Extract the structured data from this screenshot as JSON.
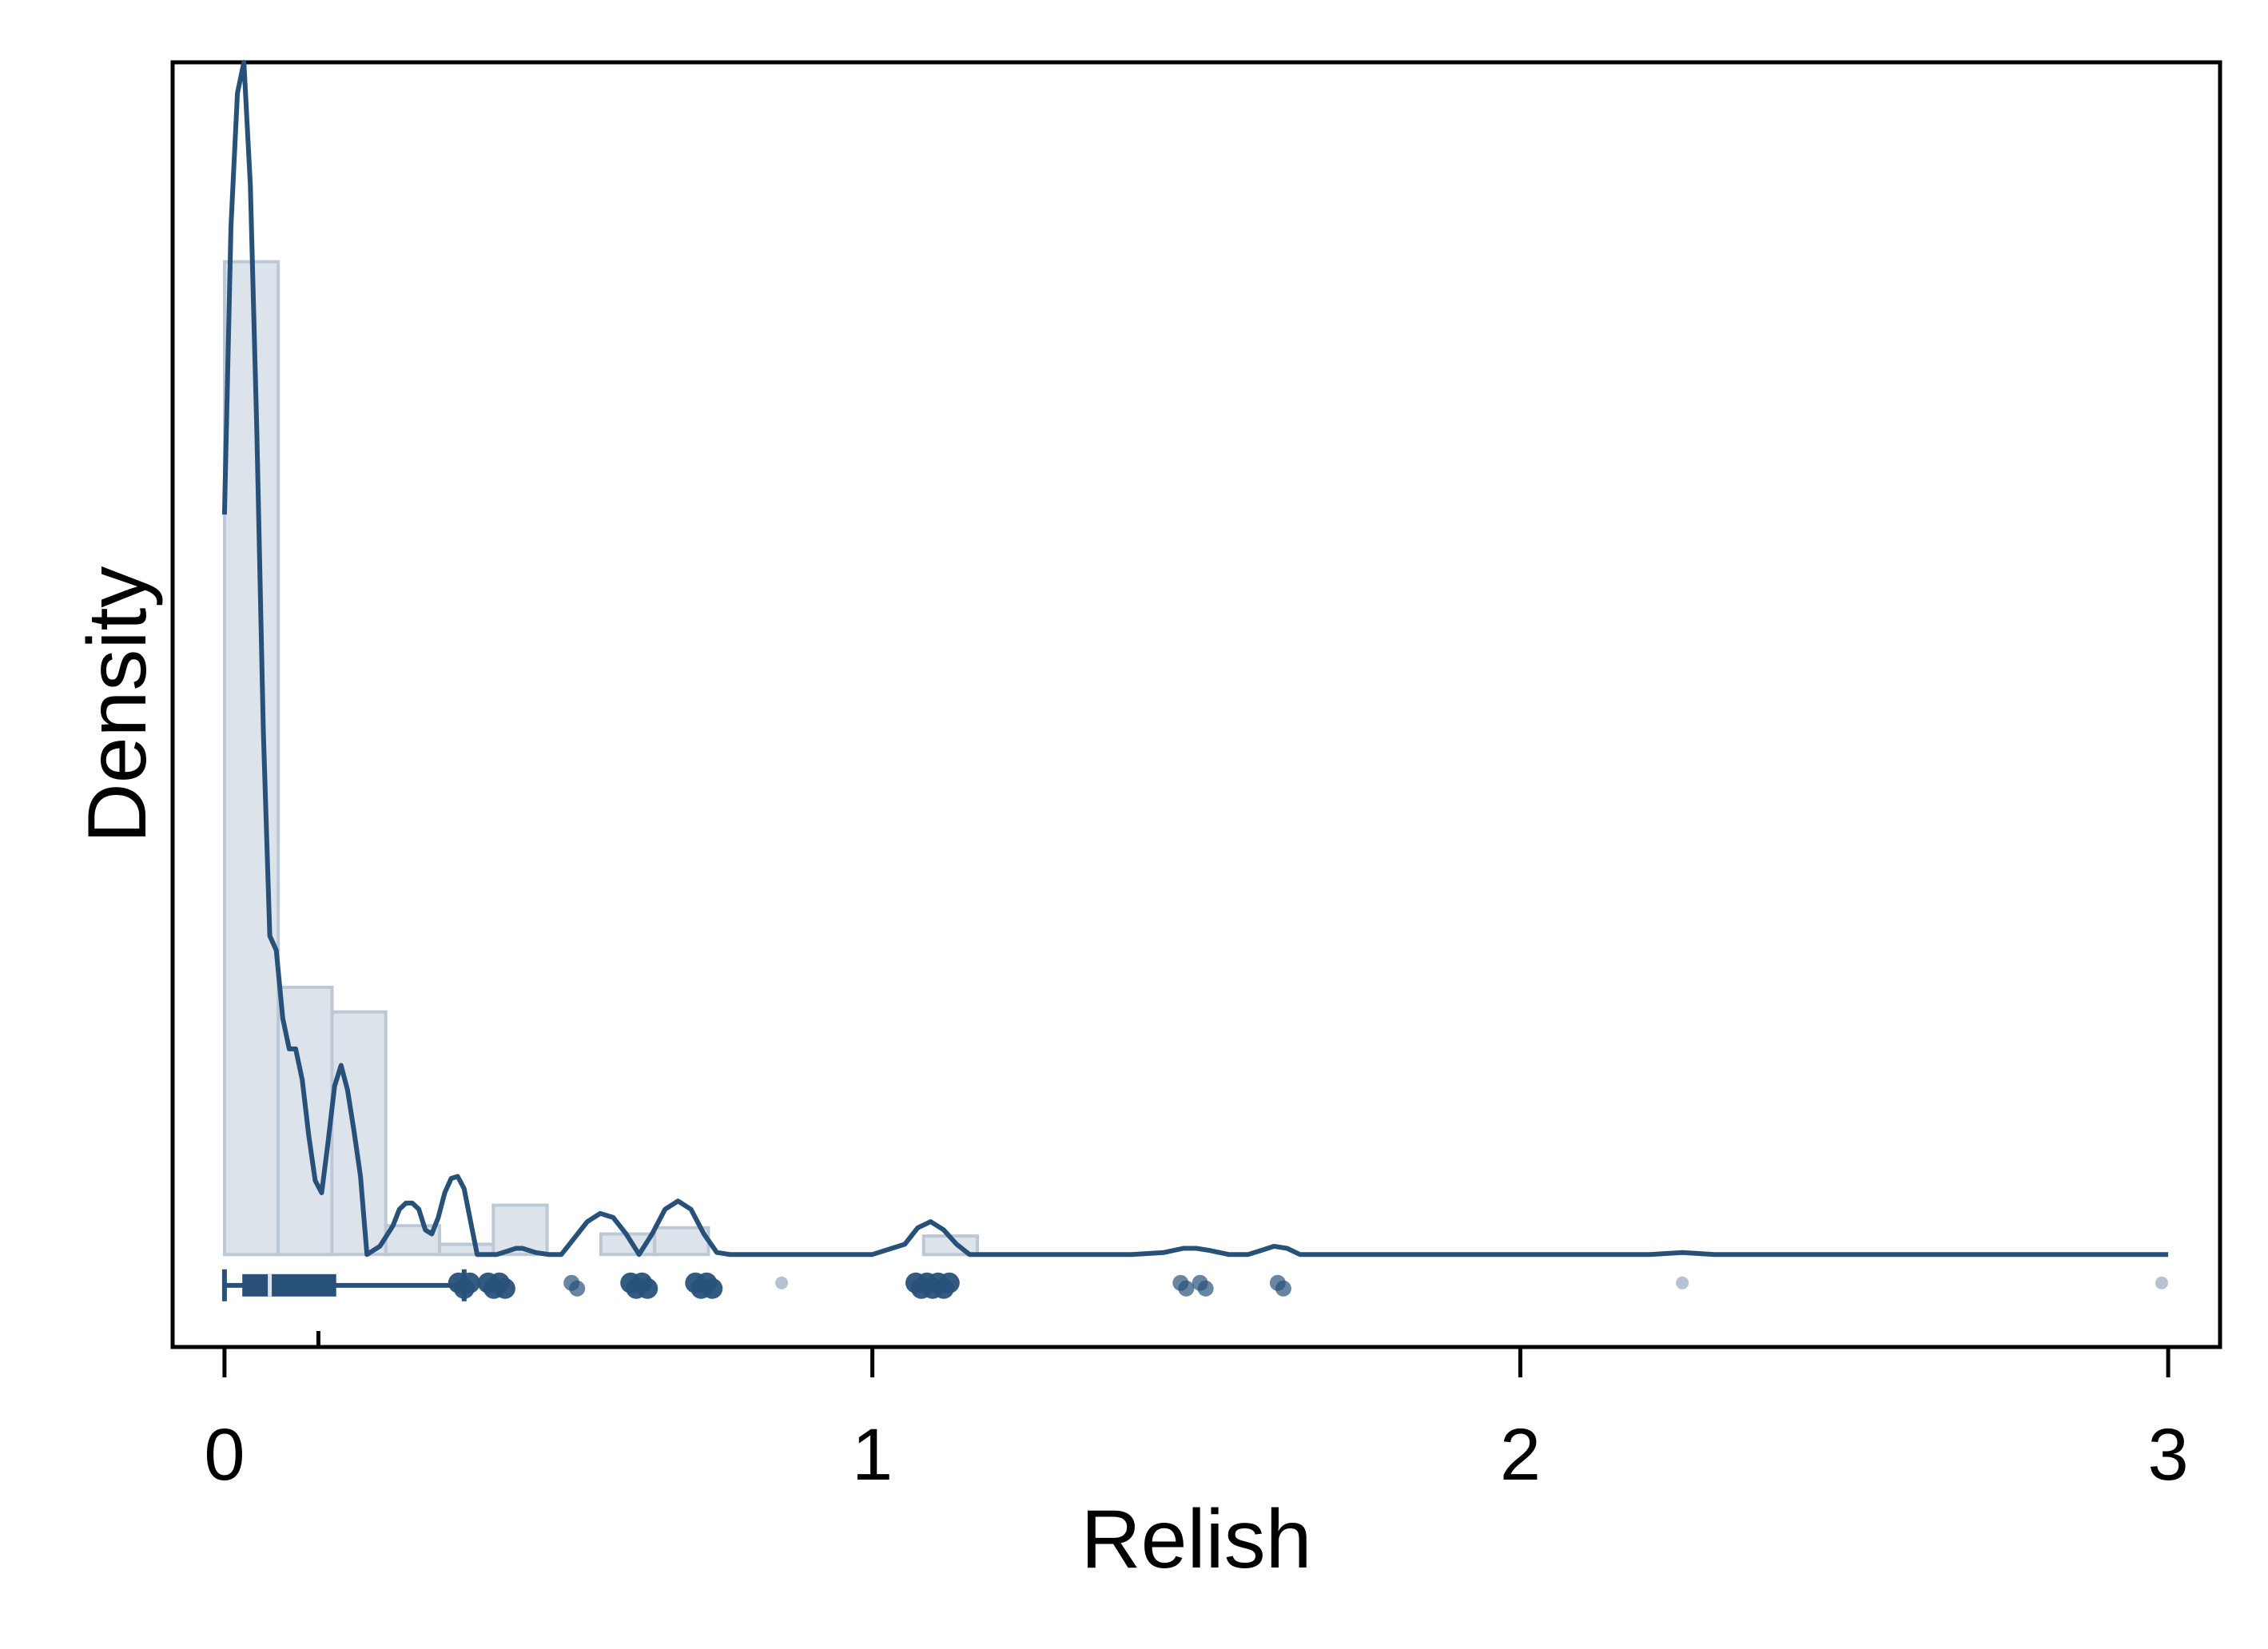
{
  "chart_data": {
    "type": "histogram+density",
    "title": "",
    "xlabel": "Relish",
    "ylabel": "Density",
    "xlim": [
      -0.08,
      3.08
    ],
    "ylim": [
      -0.45,
      5.8
    ],
    "x_ticks": [
      {
        "value": 0,
        "label": "0"
      },
      {
        "value": 1,
        "label": "1"
      },
      {
        "value": 2,
        "label": "2"
      },
      {
        "value": 3,
        "label": "3"
      }
    ],
    "y_ticks": [],
    "grid": false,
    "legend": "none",
    "colors": {
      "line": "#28517a",
      "bar_fill": "#dde3ea",
      "bar_edge": "#bcc8d5",
      "points": "#28517a"
    },
    "histogram": {
      "bin_width": 0.083,
      "bins": [
        {
          "x0": 0.0,
          "x1": 0.083,
          "density": 4.83
        },
        {
          "x0": 0.083,
          "x1": 0.166,
          "density": 1.3
        },
        {
          "x0": 0.166,
          "x1": 0.249,
          "density": 1.18
        },
        {
          "x0": 0.249,
          "x1": 0.332,
          "density": 0.14
        },
        {
          "x0": 0.332,
          "x1": 0.415,
          "density": 0.05
        },
        {
          "x0": 0.415,
          "x1": 0.498,
          "density": 0.24
        },
        {
          "x0": 0.498,
          "x1": 0.581,
          "density": 0.0
        },
        {
          "x0": 0.581,
          "x1": 0.664,
          "density": 0.1
        },
        {
          "x0": 0.664,
          "x1": 0.747,
          "density": 0.13
        },
        {
          "x0": 1.079,
          "x1": 1.162,
          "density": 0.09
        }
      ]
    },
    "density_curve": {
      "x": [
        0.0,
        0.01,
        0.02,
        0.03,
        0.04,
        0.05,
        0.06,
        0.07,
        0.08,
        0.09,
        0.1,
        0.11,
        0.12,
        0.13,
        0.14,
        0.15,
        0.16,
        0.17,
        0.18,
        0.19,
        0.2,
        0.21,
        0.22,
        0.24,
        0.26,
        0.27,
        0.28,
        0.29,
        0.3,
        0.31,
        0.32,
        0.33,
        0.34,
        0.35,
        0.36,
        0.37,
        0.38,
        0.39,
        0.4,
        0.41,
        0.42,
        0.43,
        0.44,
        0.45,
        0.46,
        0.47,
        0.48,
        0.5,
        0.52,
        0.54,
        0.56,
        0.58,
        0.6,
        0.62,
        0.64,
        0.66,
        0.68,
        0.7,
        0.72,
        0.74,
        0.76,
        0.78,
        0.8,
        0.82,
        0.85,
        0.9,
        0.95,
        1.0,
        1.05,
        1.07,
        1.09,
        1.11,
        1.13,
        1.15,
        1.2,
        1.3,
        1.4,
        1.45,
        1.48,
        1.5,
        1.52,
        1.55,
        1.58,
        1.6,
        1.62,
        1.64,
        1.66,
        1.7,
        1.8,
        2.0,
        2.2,
        2.25,
        2.3,
        2.5,
        3.0
      ],
      "y": [
        3.6,
        5.0,
        5.65,
        5.8,
        5.2,
        4.0,
        2.55,
        1.55,
        1.48,
        1.15,
        1.0,
        1.0,
        0.85,
        0.58,
        0.36,
        0.3,
        0.55,
        0.82,
        0.92,
        0.8,
        0.6,
        0.38,
        0.0,
        0.04,
        0.14,
        0.22,
        0.25,
        0.25,
        0.22,
        0.12,
        0.1,
        0.18,
        0.3,
        0.37,
        0.38,
        0.32,
        0.16,
        0.0,
        0.0,
        0.0,
        0.0,
        0.01,
        0.02,
        0.03,
        0.03,
        0.02,
        0.01,
        0.0,
        0.0,
        0.08,
        0.16,
        0.2,
        0.18,
        0.1,
        0.0,
        0.1,
        0.22,
        0.26,
        0.22,
        0.1,
        0.01,
        0.0,
        0.0,
        0.0,
        0.0,
        0.0,
        0.0,
        0.0,
        0.05,
        0.13,
        0.16,
        0.12,
        0.05,
        0.0,
        0.0,
        0.0,
        0.0,
        0.01,
        0.03,
        0.03,
        0.02,
        0.0,
        0.0,
        0.02,
        0.04,
        0.03,
        0.0,
        0.0,
        0.0,
        0.0,
        0.0,
        0.01,
        0.0,
        0.0,
        0.0
      ]
    },
    "boxplot": {
      "level": -0.15,
      "min": 0.0,
      "q1": 0.03,
      "median": 0.07,
      "q3": 0.17,
      "max": 0.37
    },
    "outlier_points": [
      {
        "x": 0.37,
        "weight": 3
      },
      {
        "x": 0.42,
        "weight": 4
      },
      {
        "x": 0.54,
        "weight": 2
      },
      {
        "x": 0.64,
        "weight": 4
      },
      {
        "x": 0.74,
        "weight": 4
      },
      {
        "x": 0.86,
        "weight": 1
      },
      {
        "x": 1.08,
        "weight": 4
      },
      {
        "x": 1.11,
        "weight": 3
      },
      {
        "x": 1.48,
        "weight": 2
      },
      {
        "x": 1.51,
        "weight": 2
      },
      {
        "x": 1.63,
        "weight": 2
      },
      {
        "x": 2.25,
        "weight": 1
      },
      {
        "x": 2.99,
        "weight": 1
      }
    ],
    "rug_marks": [
      0.145
    ]
  }
}
